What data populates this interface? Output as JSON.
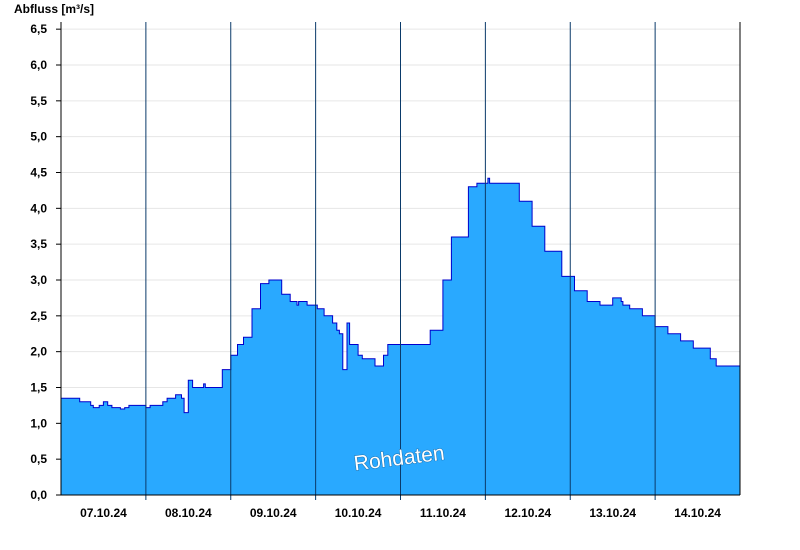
{
  "chart_data": {
    "type": "area",
    "ylabel": "Abfluss [m³/s]",
    "xlabel": "",
    "watermark": "Rohdaten",
    "ylim": [
      0,
      6.6
    ],
    "xlim": [
      0,
      8
    ],
    "y_ticks": [
      "0,0",
      "0,5",
      "1,0",
      "1,5",
      "2,0",
      "2,5",
      "3,0",
      "3,5",
      "4,0",
      "4,5",
      "5,0",
      "5,5",
      "6,0",
      "6,5"
    ],
    "y_tick_values": [
      0,
      0.5,
      1.0,
      1.5,
      2.0,
      2.5,
      3.0,
      3.5,
      4.0,
      4.5,
      5.0,
      5.5,
      6.0,
      6.5
    ],
    "x_ticks": [
      "07.10.24",
      "08.10.24",
      "09.10.24",
      "10.10.24",
      "11.10.24",
      "12.10.24",
      "13.10.24",
      "14.10.24"
    ],
    "day_separators": [
      1,
      2,
      3,
      4,
      5,
      6,
      7
    ],
    "grid": true,
    "fill_color": "#29A9FF",
    "line_color": "#0000CC",
    "x_unit": "days since 07.10.24 00:00",
    "series": [
      {
        "x": [
          0,
          0.2,
          0.22,
          0.35,
          0.38,
          0.45,
          0.5,
          0.55,
          0.6,
          0.7,
          0.75,
          0.8,
          0.9,
          1.0,
          1.05,
          1.2,
          1.25,
          1.35,
          1.42,
          1.45,
          1.5,
          1.55,
          1.6,
          1.68,
          1.7,
          1.85,
          1.9,
          2.0,
          2.08,
          2.15,
          2.25,
          2.35,
          2.45,
          2.6,
          2.7,
          2.78,
          2.8,
          2.9,
          3.02,
          3.1,
          3.2,
          3.25,
          3.28,
          3.32,
          3.37,
          3.4,
          3.5,
          3.55,
          3.7,
          3.8,
          3.85,
          4.0,
          4.2,
          4.35,
          4.5,
          4.6,
          4.8,
          4.9,
          5.0,
          5.03,
          5.05,
          5.2,
          5.3,
          5.4,
          5.55,
          5.7,
          5.9,
          6.05,
          6.2,
          6.35,
          6.5,
          6.6,
          6.62,
          6.7,
          6.85,
          7.0,
          7.15,
          7.3,
          7.45,
          7.65,
          7.72,
          8.0
        ],
        "y": [
          1.35,
          1.35,
          1.3,
          1.25,
          1.22,
          1.25,
          1.3,
          1.25,
          1.22,
          1.2,
          1.22,
          1.25,
          1.25,
          1.22,
          1.25,
          1.3,
          1.35,
          1.4,
          1.35,
          1.15,
          1.6,
          1.5,
          1.5,
          1.55,
          1.5,
          1.5,
          1.75,
          1.95,
          2.1,
          2.2,
          2.6,
          2.95,
          3.0,
          2.8,
          2.7,
          2.65,
          2.7,
          2.65,
          2.6,
          2.5,
          2.4,
          2.3,
          2.25,
          1.75,
          2.4,
          2.1,
          1.95,
          1.9,
          1.8,
          1.95,
          2.1,
          2.1,
          2.1,
          2.3,
          3.0,
          3.6,
          4.3,
          4.35,
          4.35,
          4.42,
          4.35,
          4.35,
          4.35,
          4.1,
          3.75,
          3.4,
          3.05,
          2.85,
          2.7,
          2.65,
          2.75,
          2.7,
          2.65,
          2.6,
          2.5,
          2.35,
          2.25,
          2.15,
          2.05,
          1.9,
          1.8,
          1.85
        ]
      }
    ]
  }
}
